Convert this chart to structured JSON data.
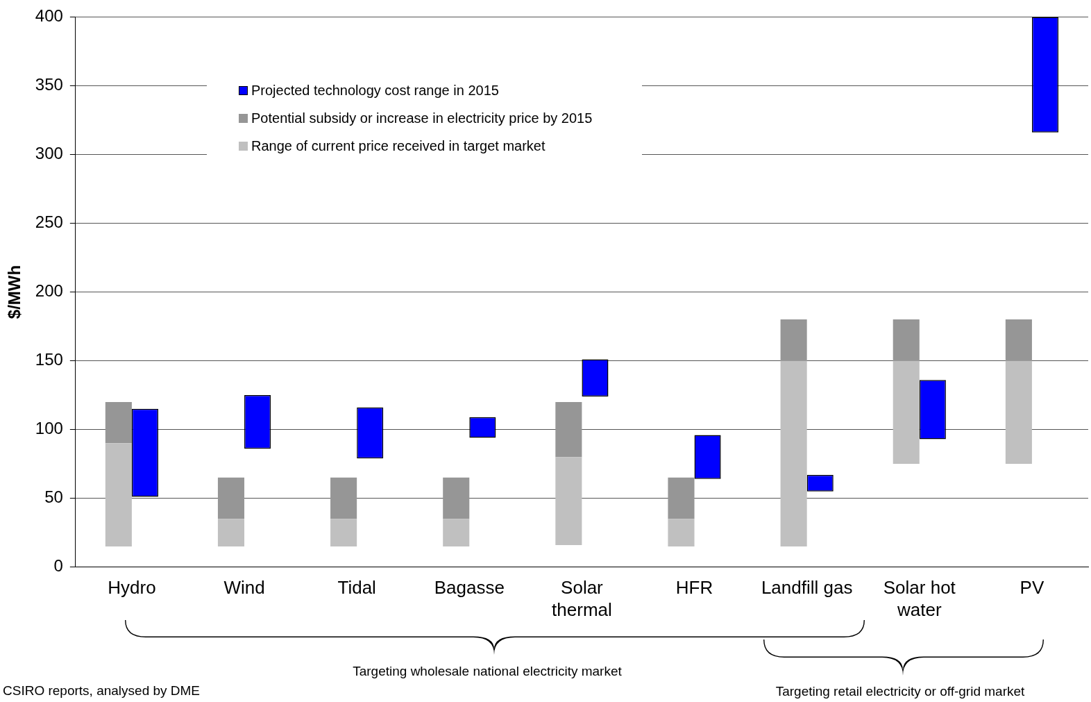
{
  "chart_data": {
    "type": "bar",
    "ylabel": "$/MWh",
    "categories": [
      "Hydro",
      "Wind",
      "Tidal",
      "Bagasse",
      "Solar thermal",
      "HFR",
      "Landfill gas",
      "Solar hot water",
      "PV"
    ],
    "series": [
      {
        "name": "Range of current price received in target market",
        "color": "#c0c0c0",
        "base": [
          15,
          15,
          15,
          15,
          16,
          15,
          15,
          75,
          75
        ],
        "values": [
          75,
          20,
          20,
          20,
          64,
          20,
          135,
          75,
          75
        ]
      },
      {
        "name": "Potential subsidy or increase in electricity price by 2015",
        "color": "#969696",
        "base": [
          90,
          35,
          35,
          35,
          80,
          35,
          150,
          150,
          150
        ],
        "values": [
          30,
          30,
          30,
          30,
          40,
          30,
          30,
          30,
          30
        ]
      },
      {
        "name": "Projected technology cost range in 2015",
        "color": "#0000ff",
        "base": [
          51,
          86,
          79,
          94,
          124,
          64,
          55,
          93,
          316
        ],
        "values": [
          64,
          39,
          37,
          15,
          27,
          32,
          12,
          43,
          84
        ]
      }
    ],
    "ylim": [
      0,
      400
    ],
    "yticks": [
      0,
      50,
      100,
      150,
      200,
      250,
      300,
      350,
      400
    ],
    "grid": "y",
    "legend": "top",
    "annotations": [
      "Targeting wholesale national electricity market",
      "Targeting retail electricity or off-grid market",
      "CSIRO reports, analysed by DME"
    ]
  }
}
